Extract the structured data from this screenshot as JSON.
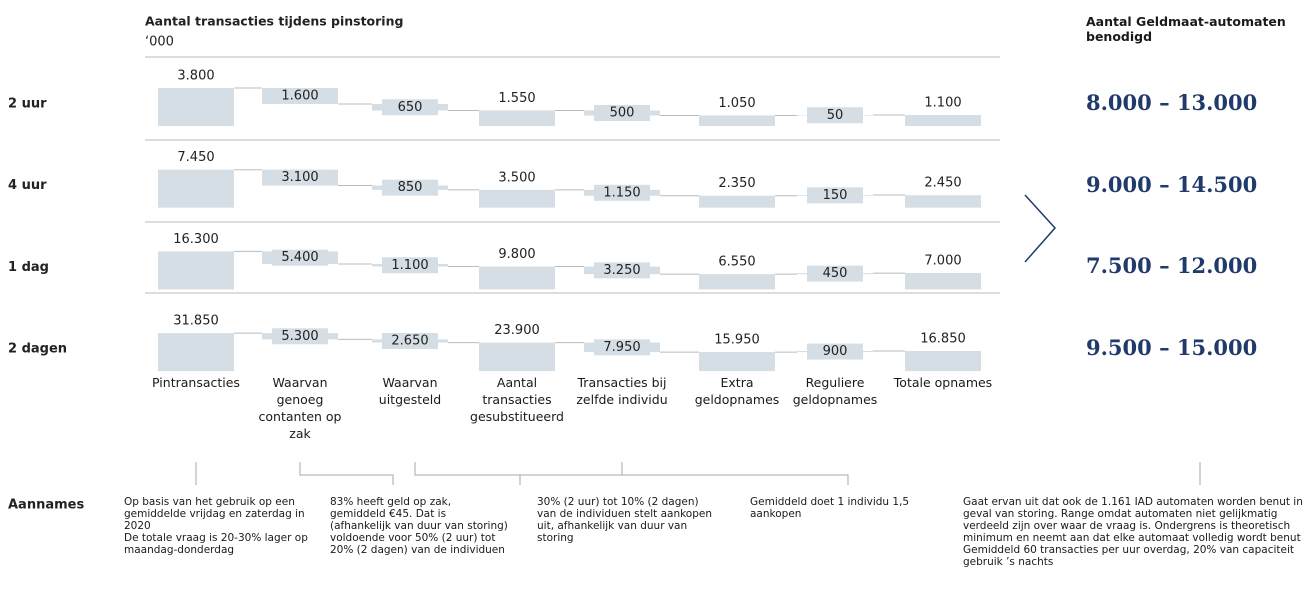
{
  "chart_data": {
    "type": "waterfall",
    "title": "Aantal transacties tijdens pinstoring",
    "subtitle": "‘000",
    "categories": [
      "Pintransacties",
      "Waarvan genoeg contanten op zak",
      "Waarvan uitgesteld",
      "Aantal transacties gesubstitueerd",
      "Transacties bij zelfde individu",
      "Extra geldopnames",
      "Reguliere geldopnames",
      "Totale opnames"
    ],
    "steps": [
      "total",
      "down",
      "down",
      "total",
      "down",
      "total",
      "up",
      "total"
    ],
    "color": "#d5dee5",
    "series": [
      {
        "name": "2 uur",
        "values": [
          3800,
          1600,
          650,
          1550,
          500,
          1050,
          50,
          1100
        ],
        "value_labels": [
          "3.800",
          "1.600",
          "650",
          "1.550",
          "500",
          "1.050",
          "50",
          "1.100"
        ]
      },
      {
        "name": "4 uur",
        "values": [
          7450,
          3100,
          850,
          3500,
          1150,
          2350,
          150,
          2450
        ],
        "value_labels": [
          "7.450",
          "3.100",
          "850",
          "3.500",
          "1.150",
          "2.350",
          "150",
          "2.450"
        ]
      },
      {
        "name": "1 dag",
        "values": [
          16300,
          5400,
          1100,
          9800,
          3250,
          6550,
          450,
          7000
        ],
        "value_labels": [
          "16.300",
          "5.400",
          "1.100",
          "9.800",
          "3.250",
          "6.550",
          "450",
          "7.000"
        ]
      },
      {
        "name": "2 dagen",
        "values": [
          31850,
          5300,
          2650,
          23900,
          7950,
          15950,
          900,
          16850
        ],
        "value_labels": [
          "31.850",
          "5.300",
          "2.650",
          "23.900",
          "7.950",
          "15.950",
          "900",
          "16.850"
        ]
      }
    ],
    "result_title": "Aantal Geldmaat-automaten benodigd",
    "results": [
      "8.000 – 13.000",
      "9.000 – 14.500",
      "7.500 – 12.000",
      "9.500 – 15.000"
    ],
    "notes_title": "Aannames",
    "notes": [
      [
        "Op basis van het gebruik op een gemiddelde vrijdag en zaterdag in 2020",
        "De totale vraag is 20-30% lager op maandag-donderdag"
      ],
      [
        "83% heeft geld op zak, gemiddeld €45. Dat is (afhankelijk van duur van storing) voldoende voor 50% (2 uur) tot 20% (2 dagen) van de individuen"
      ],
      [
        "30% (2 uur) tot 10% (2 dagen) van de individuen stelt aankopen uit, afhankelijk van duur van storing"
      ],
      [
        "Gemiddeld doet 1 individu 1,5 aankopen"
      ],
      [
        "Gaat ervan uit dat ook de 1.161 IAD automaten worden benut in geval van storing. Range omdat automaten niet gelijkmatig verdeeld zijn over waar de vraag is. Ondergrens is theoretisch minimum en neemt aan dat elke automaat volledig wordt benut",
        "Gemiddeld 60 transacties per uur overdag, 20% van capaciteit gebruik ’s nachts"
      ]
    ]
  }
}
